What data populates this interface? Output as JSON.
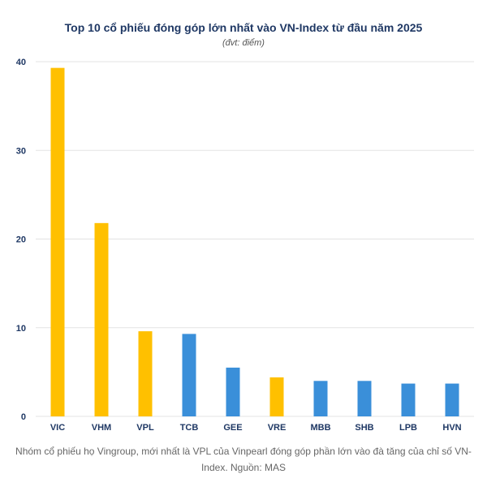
{
  "chart_data": {
    "type": "bar",
    "title": "Top 10 cổ phiếu đóng góp lớn nhất vào VN-Index từ đầu năm 2025",
    "subtitle": "(đvt: điểm)",
    "categories": [
      "VIC",
      "VHM",
      "VPL",
      "TCB",
      "GEE",
      "VRE",
      "MBB",
      "SHB",
      "LPB",
      "HVN"
    ],
    "values": [
      39.3,
      21.8,
      9.6,
      9.3,
      5.5,
      4.4,
      4.0,
      4.0,
      3.7,
      3.7
    ],
    "group": [
      "Vingroup",
      "Vingroup",
      "Vingroup",
      "other",
      "other",
      "Vingroup",
      "other",
      "other",
      "other",
      "other"
    ],
    "ylim": [
      0,
      40
    ],
    "yticks": [
      0,
      10,
      20,
      30,
      40
    ],
    "xlabel": "",
    "ylabel": "",
    "grid": true,
    "legend": "none",
    "colors": {
      "Vingroup": "#ffc000",
      "other": "#3a8fd9",
      "gridline": "#e3e3e3",
      "axis_text": "#1f3864"
    }
  },
  "caption": "Nhóm cổ phiếu họ Vingroup, mới nhất là VPL của Vinpearl đóng góp phần lớn vào đà tăng của chỉ số VN-Index. Nguồn: MAS"
}
